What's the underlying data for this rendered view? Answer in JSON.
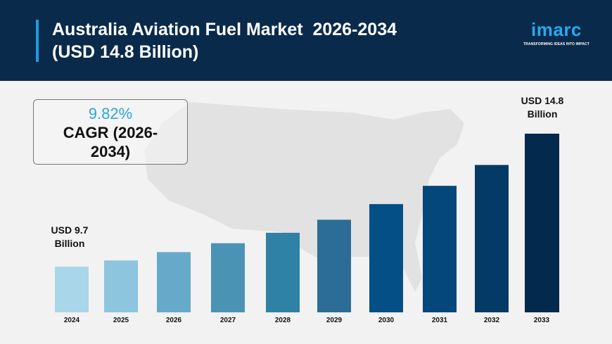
{
  "header": {
    "title": "Australia Aviation Fuel Market  2026-2034\n(USD 14.8 Billion)"
  },
  "logo": {
    "word": "imarc",
    "tagline": "TRANSFORMING IDEAS INTO IMPACT"
  },
  "cagr": {
    "value": "9.82%",
    "label": "CAGR (2026-2034)"
  },
  "chart_data": {
    "type": "bar",
    "categories": [
      "2024",
      "2025",
      "2026",
      "2027",
      "2028",
      "2029",
      "2030",
      "2031",
      "2032",
      "2033"
    ],
    "values": [
      9.7,
      9.94,
      10.26,
      10.6,
      11.0,
      11.5,
      12.1,
      12.8,
      13.6,
      14.8
    ],
    "unit": "USD Billion",
    "annotations": {
      "first": "USD 9.7 Billion",
      "last": "USD 14.8 Billion"
    },
    "colors": [
      "#a9d6e9",
      "#8dc4de",
      "#67a9c9",
      "#4b93b4",
      "#3081a6",
      "#2b6d97",
      "#044f86",
      "#04477b",
      "#043a66",
      "#03294c"
    ],
    "grid": false
  }
}
